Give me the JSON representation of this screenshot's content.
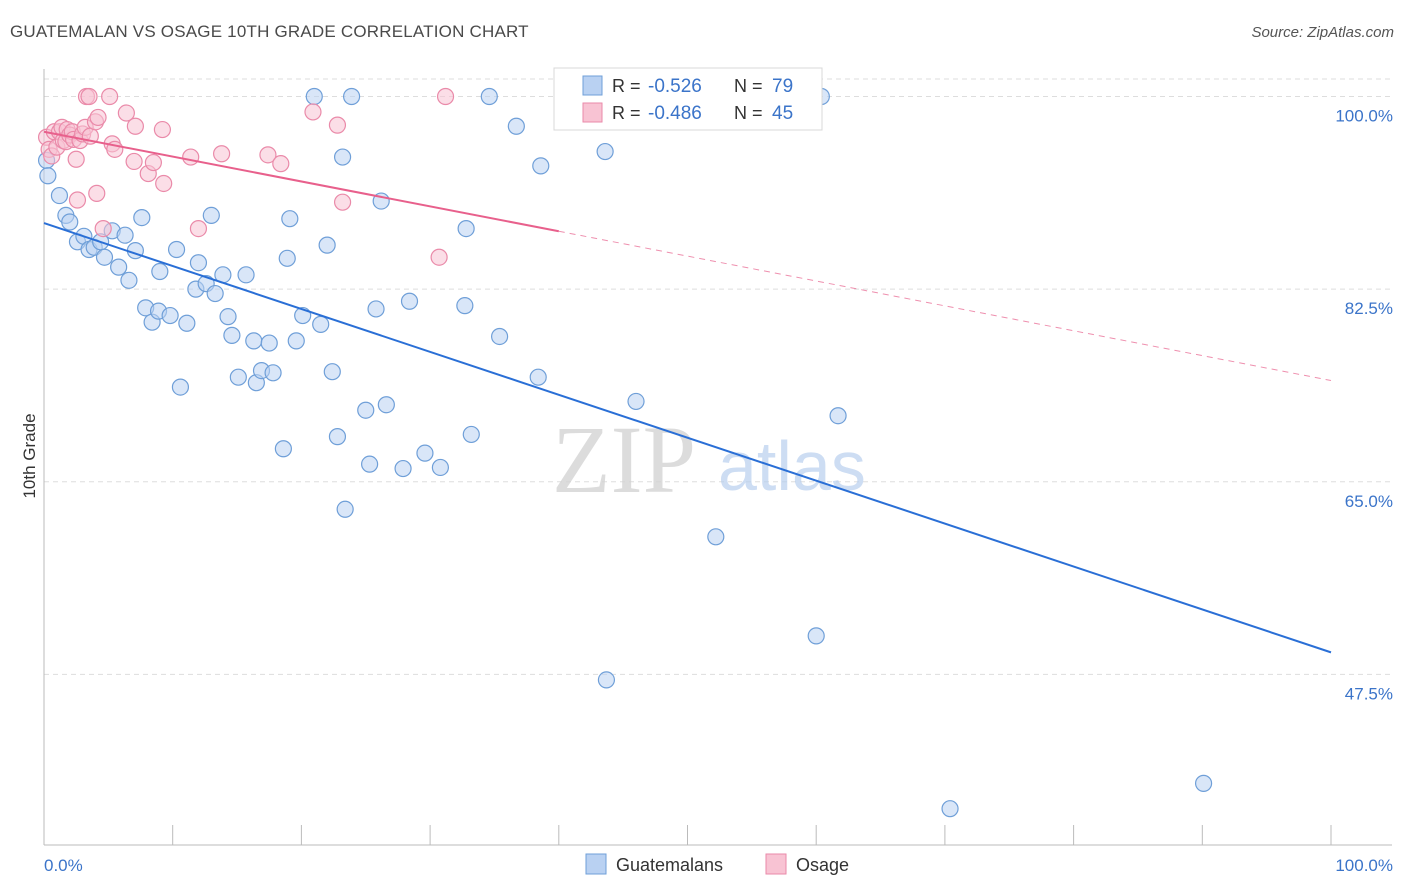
{
  "title": "GUATEMALAN VS OSAGE 10TH GRADE CORRELATION CHART",
  "source": "Source: ZipAtlas.com",
  "watermark": {
    "zip": "ZIP",
    "atlas": "atlas"
  },
  "colors": {
    "guatemalans_fill": "#b9d1f2",
    "guatemalans_stroke": "#6f9fd8",
    "guatemalans_line": "#2a6fd6",
    "osage_fill": "#f8c3d3",
    "osage_stroke": "#ea8aa9",
    "osage_line": "#e8608c",
    "grid": "#dddddd",
    "axis_label": "#3b74c9"
  },
  "legend": {
    "rows": [
      {
        "r_label": "R =",
        "r_value": "-0.526",
        "n_label": "N =",
        "n_value": "79"
      },
      {
        "r_label": "R =",
        "r_value": "-0.486",
        "n_label": "N =",
        "n_value": "45"
      }
    ]
  },
  "chart_data": {
    "type": "scatter",
    "xlabel": "",
    "ylabel": "10th Grade",
    "xlim": [
      0,
      100
    ],
    "ylim": [
      32,
      102.5
    ],
    "x_tick_labels": [
      "0.0%",
      "100.0%"
    ],
    "y_ticks": [
      47.5,
      65.0,
      82.5,
      100.0
    ],
    "y_tick_labels": [
      "47.5%",
      "65.0%",
      "82.5%",
      "100.0%"
    ],
    "grid": true,
    "legend_position": "top-center",
    "series": [
      {
        "name": "Guatemalans",
        "trend": {
          "x0": 0,
          "y0": 88.5,
          "x1": 100,
          "y1": 49.5,
          "solid_to": 100
        },
        "points": [
          [
            0.2,
            94.2
          ],
          [
            0.3,
            92.8
          ],
          [
            1.2,
            91.0
          ],
          [
            1.7,
            89.2
          ],
          [
            2.0,
            88.6
          ],
          [
            2.6,
            86.8
          ],
          [
            3.1,
            87.3
          ],
          [
            3.5,
            86.1
          ],
          [
            3.9,
            86.3
          ],
          [
            4.4,
            86.8
          ],
          [
            4.7,
            85.4
          ],
          [
            5.3,
            87.8
          ],
          [
            5.8,
            84.5
          ],
          [
            6.3,
            87.4
          ],
          [
            6.6,
            83.3
          ],
          [
            7.1,
            86.0
          ],
          [
            7.6,
            89.0
          ],
          [
            7.9,
            80.8
          ],
          [
            8.4,
            79.5
          ],
          [
            8.9,
            80.5
          ],
          [
            9.0,
            84.1
          ],
          [
            9.8,
            80.1
          ],
          [
            10.3,
            86.1
          ],
          [
            10.6,
            73.6
          ],
          [
            11.1,
            79.4
          ],
          [
            11.8,
            82.5
          ],
          [
            12.0,
            84.9
          ],
          [
            12.6,
            83.0
          ],
          [
            13.0,
            89.2
          ],
          [
            13.3,
            82.1
          ],
          [
            13.9,
            83.8
          ],
          [
            14.3,
            80.0
          ],
          [
            14.6,
            78.3
          ],
          [
            15.1,
            74.5
          ],
          [
            15.7,
            83.8
          ],
          [
            16.3,
            77.8
          ],
          [
            16.5,
            74.0
          ],
          [
            16.9,
            75.1
          ],
          [
            17.5,
            77.6
          ],
          [
            17.8,
            74.9
          ],
          [
            18.6,
            68.0
          ],
          [
            18.9,
            85.3
          ],
          [
            19.1,
            88.9
          ],
          [
            19.6,
            77.8
          ],
          [
            20.1,
            80.1
          ],
          [
            21.0,
            100.0
          ],
          [
            21.5,
            79.3
          ],
          [
            22.0,
            86.5
          ],
          [
            22.4,
            75.0
          ],
          [
            22.8,
            69.1
          ],
          [
            23.2,
            94.5
          ],
          [
            23.4,
            62.5
          ],
          [
            23.9,
            100.0
          ],
          [
            25.0,
            71.5
          ],
          [
            25.3,
            66.6
          ],
          [
            25.8,
            80.7
          ],
          [
            26.2,
            90.5
          ],
          [
            26.6,
            72.0
          ],
          [
            27.9,
            66.2
          ],
          [
            28.4,
            81.4
          ],
          [
            29.6,
            67.6
          ],
          [
            30.8,
            66.3
          ],
          [
            32.7,
            81.0
          ],
          [
            32.8,
            88.0
          ],
          [
            33.2,
            69.3
          ],
          [
            34.6,
            100.0
          ],
          [
            35.4,
            78.2
          ],
          [
            36.7,
            97.3
          ],
          [
            38.4,
            74.5
          ],
          [
            38.6,
            93.7
          ],
          [
            43.6,
            95.0
          ],
          [
            43.7,
            47.0
          ],
          [
            46.0,
            72.3
          ],
          [
            52.2,
            60.0
          ],
          [
            60.4,
            100.0
          ],
          [
            60.0,
            51.0
          ],
          [
            61.7,
            71.0
          ],
          [
            70.4,
            35.3
          ],
          [
            90.1,
            37.6
          ]
        ]
      },
      {
        "name": "Osage",
        "trend": {
          "x0": 0,
          "y0": 96.8,
          "x1": 100,
          "y1": 74.2,
          "solid_to": 40
        },
        "points": [
          [
            0.2,
            96.3
          ],
          [
            0.4,
            95.2
          ],
          [
            0.6,
            94.6
          ],
          [
            0.8,
            96.8
          ],
          [
            1.0,
            95.4
          ],
          [
            1.2,
            96.8
          ],
          [
            1.4,
            97.2
          ],
          [
            1.5,
            96.0
          ],
          [
            1.7,
            95.9
          ],
          [
            1.8,
            97.0
          ],
          [
            2.0,
            96.5
          ],
          [
            2.2,
            96.8
          ],
          [
            2.3,
            96.1
          ],
          [
            2.5,
            94.3
          ],
          [
            2.6,
            90.6
          ],
          [
            2.8,
            96.0
          ],
          [
            3.0,
            96.6
          ],
          [
            3.2,
            97.2
          ],
          [
            3.3,
            100.0
          ],
          [
            3.5,
            100.0
          ],
          [
            3.6,
            96.4
          ],
          [
            4.0,
            97.7
          ],
          [
            4.1,
            91.2
          ],
          [
            4.2,
            98.1
          ],
          [
            4.6,
            88.0
          ],
          [
            5.1,
            100.0
          ],
          [
            5.3,
            95.7
          ],
          [
            5.5,
            95.2
          ],
          [
            6.4,
            98.5
          ],
          [
            7.0,
            94.1
          ],
          [
            7.1,
            97.3
          ],
          [
            8.1,
            93.0
          ],
          [
            8.5,
            94.0
          ],
          [
            9.2,
            97.0
          ],
          [
            9.3,
            92.1
          ],
          [
            11.4,
            94.5
          ],
          [
            12.0,
            88.0
          ],
          [
            13.8,
            94.8
          ],
          [
            17.4,
            94.7
          ],
          [
            18.4,
            93.9
          ],
          [
            20.9,
            98.6
          ],
          [
            22.8,
            97.4
          ],
          [
            23.2,
            90.4
          ],
          [
            30.7,
            85.4
          ],
          [
            31.2,
            100.0
          ]
        ]
      }
    ]
  }
}
